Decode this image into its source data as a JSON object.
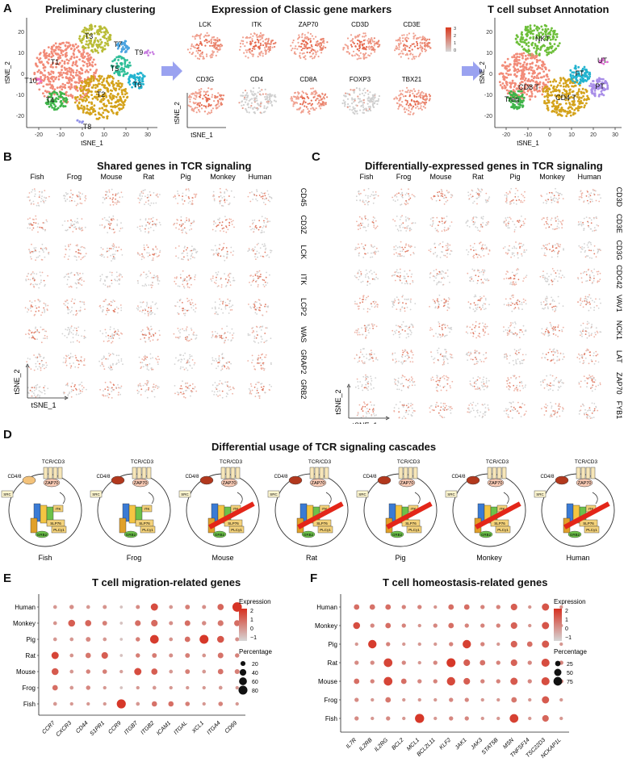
{
  "panel_letters": {
    "A": "A",
    "B": "B",
    "C": "C",
    "D": "D",
    "E": "E",
    "F": "F"
  },
  "panelA": {
    "left_title": "Preliminary clustering",
    "mid_title": "Expression of Classic gene markers",
    "right_title": "T cell subset Annotation",
    "xlabel": "tSNE_1",
    "ylabel": "tSNE_2",
    "left_xticks": [
      "-20",
      "-10",
      "0",
      "10",
      "20",
      "30"
    ],
    "left_yticks": [
      "20",
      "10",
      "0",
      "-10",
      "-20"
    ],
    "right_xticks": [
      "-20",
      "-10",
      "0",
      "10",
      "20",
      "30"
    ],
    "right_yticks": [
      "20",
      "10",
      "0",
      "-10",
      "-20"
    ],
    "clusters": [
      {
        "label": "T1",
        "color": "#f28b78"
      },
      {
        "label": "T2",
        "color": "#d4a21a"
      },
      {
        "label": "T3",
        "color": "#b9bc36"
      },
      {
        "label": "T4",
        "color": "#3fb54a"
      },
      {
        "label": "T5",
        "color": "#2fbe98"
      },
      {
        "label": "T6",
        "color": "#22b3cf"
      },
      {
        "label": "T7",
        "color": "#4aa3e0"
      },
      {
        "label": "T8",
        "color": "#8f8fe8"
      },
      {
        "label": "T9",
        "color": "#c77be0"
      },
      {
        "label": "T10",
        "color": "#ef6fc2"
      }
    ],
    "markers_row1": [
      "LCK",
      "ITK",
      "ZAP70",
      "CD3D",
      "CD3E"
    ],
    "markers_row2": [
      "CD3G",
      "CD4",
      "CD8A",
      "FOXP3",
      "TBX21"
    ],
    "colorbar_ticks": [
      "3",
      "2",
      "1",
      "0"
    ],
    "annotations": [
      {
        "label": "NKT",
        "color": "#6dbf3a"
      },
      {
        "label": "CD8 T",
        "color": "#f28b78"
      },
      {
        "label": "CD4 T",
        "color": "#d4a21a"
      },
      {
        "label": "Treg",
        "color": "#3fb54a"
      },
      {
        "label": "FT",
        "color": "#22b3cf"
      },
      {
        "label": "PT",
        "color": "#a98ee8"
      },
      {
        "label": "UT",
        "color": "#e06fd6"
      }
    ]
  },
  "panelB": {
    "title": "Shared genes in TCR signaling",
    "species": [
      "Fish",
      "Frog",
      "Mouse",
      "Rat",
      "Pig",
      "Monkey",
      "Human"
    ],
    "genes": [
      "CD45",
      "CD3Z",
      "LCK",
      "ITK",
      "LCP2",
      "WAS",
      "GRAP2",
      "GRB2"
    ],
    "xlabel": "tSNE_1",
    "ylabel": "tSNE_2"
  },
  "panelC": {
    "title": "Differentially-expressed genes in TCR signaling",
    "species": [
      "Fish",
      "Frog",
      "Mouse",
      "Rat",
      "Pig",
      "Monkey",
      "Human"
    ],
    "genes": [
      "CD3D",
      "CD3E",
      "CD3G",
      "CDC42",
      "VAV1",
      "NCK1",
      "LAT",
      "ZAP70",
      "FYB1"
    ],
    "xlabel": "tSNE_1",
    "ylabel": "tSNE_2"
  },
  "panelD": {
    "title": "Differential usage of TCR signaling cascades",
    "species": [
      "Fish",
      "Frog",
      "Mouse",
      "Rat",
      "Pig",
      "Monkey",
      "Human"
    ],
    "labels": {
      "tcr": "TCR/CD3",
      "cd48": "CD4/8",
      "zap": "ZAP70",
      "lck": "LCK",
      "itk": "ITK",
      "slp": "SLP76",
      "plc": "PLCγ1",
      "grb2": "GRB2",
      "vav": "VAV1",
      "nck": "NCK",
      "cdc": "CDC42",
      "lat": "LAT",
      "src": "SRC"
    }
  },
  "panelE": {
    "chart_data": {
      "type": "scatter",
      "title": "T cell migration-related genes",
      "genes": [
        "CCR7",
        "CXCR3",
        "CD44",
        "S1PR1",
        "CCR9",
        "ITGB7",
        "ITGB2",
        "ICAM1",
        "ITGAL",
        "XCL1",
        "ITGA4",
        "CD69"
      ],
      "species": [
        "Human",
        "Monkey",
        "Pig",
        "Rat",
        "Mouse",
        "Frog",
        "Fish"
      ],
      "expression_range": [
        -1.5,
        2.5
      ],
      "colorbar_ticks": [
        "2",
        "1",
        "0",
        "−1"
      ],
      "size_ticks": [
        "20",
        "40",
        "60",
        "80"
      ],
      "legend_title_color": "Expression",
      "legend_title_size": "Percentage",
      "points": [
        [
          2,
          10,
          0.0
        ],
        [
          3,
          15,
          0.2
        ],
        [
          4,
          10,
          0.0
        ],
        [
          5,
          12,
          0.1
        ],
        [
          0,
          5,
          -1.0
        ],
        [
          4,
          12,
          0.3
        ],
        [
          22,
          50,
          1.8
        ],
        [
          4,
          10,
          0.0
        ],
        [
          6,
          18,
          0.6
        ],
        [
          4,
          12,
          0.2
        ],
        [
          14,
          35,
          1.2
        ],
        [
          60,
          90,
          2.4
        ],
        [
          3,
          10,
          0.1
        ],
        [
          20,
          45,
          1.4
        ],
        [
          12,
          35,
          1.2
        ],
        [
          6,
          18,
          0.6
        ],
        [
          0,
          5,
          -1.0
        ],
        [
          12,
          30,
          1.0
        ],
        [
          18,
          40,
          1.1
        ],
        [
          4,
          12,
          0.2
        ],
        [
          12,
          28,
          1.0
        ],
        [
          6,
          15,
          0.3
        ],
        [
          12,
          30,
          0.8
        ],
        [
          14,
          32,
          1.0
        ],
        [
          3,
          10,
          0.0
        ],
        [
          3,
          10,
          0.0
        ],
        [
          6,
          18,
          0.4
        ],
        [
          2,
          10,
          0.0
        ],
        [
          0,
          5,
          -1.0
        ],
        [
          6,
          15,
          0.6
        ],
        [
          40,
          75,
          2.2
        ],
        [
          4,
          10,
          0.1
        ],
        [
          10,
          26,
          1.0
        ],
        [
          45,
          80,
          2.3
        ],
        [
          20,
          45,
          1.6
        ],
        [
          4,
          12,
          0.2
        ],
        [
          22,
          50,
          2.0
        ],
        [
          4,
          10,
          0.1
        ],
        [
          10,
          25,
          0.8
        ],
        [
          18,
          40,
          1.4
        ],
        [
          0,
          5,
          -1.0
        ],
        [
          6,
          15,
          0.6
        ],
        [
          6,
          18,
          0.7
        ],
        [
          4,
          12,
          0.2
        ],
        [
          6,
          18,
          0.6
        ],
        [
          4,
          10,
          0.1
        ],
        [
          12,
          28,
          0.9
        ],
        [
          6,
          15,
          0.5
        ],
        [
          20,
          45,
          1.5
        ],
        [
          4,
          10,
          0.0
        ],
        [
          6,
          15,
          0.5
        ],
        [
          6,
          16,
          0.6
        ],
        [
          2,
          8,
          -0.2
        ],
        [
          22,
          50,
          1.8
        ],
        [
          14,
          35,
          1.4
        ],
        [
          4,
          10,
          0.0
        ],
        [
          6,
          18,
          0.6
        ],
        [
          4,
          10,
          0.0
        ],
        [
          10,
          26,
          0.9
        ],
        [
          8,
          20,
          0.6
        ],
        [
          10,
          26,
          1.0
        ],
        [
          3,
          10,
          0.0
        ],
        [
          6,
          15,
          0.4
        ],
        [
          2,
          8,
          0.0
        ],
        [
          0,
          5,
          -1.0
        ],
        [
          2,
          8,
          0.0
        ],
        [
          3,
          10,
          0.0
        ],
        [
          2,
          8,
          0.0
        ],
        [
          2,
          8,
          0.0
        ],
        [
          2,
          8,
          0.0
        ],
        [
          3,
          10,
          0.0
        ],
        [
          2,
          8,
          0.0
        ],
        [
          3,
          10,
          0.0
        ],
        [
          2,
          8,
          0.0
        ],
        [
          2,
          8,
          0.0
        ],
        [
          2,
          8,
          0.0
        ],
        [
          45,
          82,
          2.3
        ],
        [
          3,
          10,
          0.0
        ],
        [
          10,
          24,
          0.9
        ],
        [
          10,
          24,
          1.0
        ],
        [
          6,
          16,
          0.6
        ],
        [
          2,
          8,
          0.0
        ],
        [
          6,
          16,
          0.5
        ],
        [
          2,
          8,
          0.0
        ]
      ]
    }
  },
  "panelF": {
    "chart_data": {
      "type": "scatter",
      "title": "T cell homeostasis-related genes",
      "genes": [
        "IL7R",
        "IL2RB",
        "IL2RG",
        "BCL2",
        "MCL1",
        "BCL2L11",
        "KLF2",
        "JAK1",
        "JAK3",
        "STAT5B",
        "MSN",
        "TNFSF14",
        "TSC22D3",
        "NCKAP1L"
      ],
      "species": [
        "Human",
        "Monkey",
        "Pig",
        "Rat",
        "Mouse",
        "Frog",
        "Fish"
      ],
      "expression_range": [
        -1.5,
        2.5
      ],
      "colorbar_ticks": [
        "2",
        "1",
        "0",
        "−1"
      ],
      "size_ticks": [
        "25",
        "50",
        "75"
      ],
      "legend_title_color": "Expression",
      "legend_title_size": "Percentage",
      "points": [
        [
          12,
          26,
          1.0
        ],
        [
          12,
          26,
          0.9
        ],
        [
          12,
          26,
          1.0
        ],
        [
          6,
          14,
          0.5
        ],
        [
          6,
          14,
          0.5
        ],
        [
          3,
          8,
          0.1
        ],
        [
          12,
          26,
          1.0
        ],
        [
          12,
          26,
          1.0
        ],
        [
          6,
          14,
          0.5
        ],
        [
          6,
          14,
          0.5
        ],
        [
          20,
          40,
          1.4
        ],
        [
          3,
          8,
          0.1
        ],
        [
          25,
          50,
          1.6
        ],
        [
          3,
          8,
          0.1
        ],
        [
          22,
          45,
          1.8
        ],
        [
          6,
          14,
          0.4
        ],
        [
          12,
          26,
          1.0
        ],
        [
          6,
          14,
          0.5
        ],
        [
          3,
          8,
          0.1
        ],
        [
          6,
          14,
          0.4
        ],
        [
          12,
          26,
          1.0
        ],
        [
          6,
          14,
          0.5
        ],
        [
          6,
          14,
          0.5
        ],
        [
          6,
          14,
          0.5
        ],
        [
          20,
          40,
          1.3
        ],
        [
          3,
          8,
          0.1
        ],
        [
          25,
          50,
          1.6
        ],
        [
          3,
          8,
          0.1
        ],
        [
          3,
          8,
          0.0
        ],
        [
          40,
          70,
          2.2
        ],
        [
          6,
          14,
          0.5
        ],
        [
          3,
          8,
          0.0
        ],
        [
          3,
          8,
          0.0
        ],
        [
          3,
          8,
          0.0
        ],
        [
          6,
          14,
          0.5
        ],
        [
          40,
          70,
          2.1
        ],
        [
          6,
          14,
          0.5
        ],
        [
          3,
          8,
          0.0
        ],
        [
          20,
          40,
          1.3
        ],
        [
          12,
          26,
          1.0
        ],
        [
          25,
          50,
          1.5
        ],
        [
          3,
          8,
          0.0
        ],
        [
          6,
          14,
          0.3
        ],
        [
          6,
          14,
          0.3
        ],
        [
          45,
          75,
          2.0
        ],
        [
          6,
          14,
          0.4
        ],
        [
          3,
          8,
          0.0
        ],
        [
          6,
          14,
          0.4
        ],
        [
          50,
          80,
          2.3
        ],
        [
          20,
          40,
          1.4
        ],
        [
          12,
          26,
          0.9
        ],
        [
          6,
          14,
          0.5
        ],
        [
          20,
          40,
          1.3
        ],
        [
          6,
          14,
          0.4
        ],
        [
          35,
          65,
          1.8
        ],
        [
          6,
          14,
          0.5
        ],
        [
          12,
          26,
          1.0
        ],
        [
          6,
          14,
          0.5
        ],
        [
          45,
          75,
          2.0
        ],
        [
          12,
          26,
          1.0
        ],
        [
          6,
          14,
          0.4
        ],
        [
          6,
          14,
          0.5
        ],
        [
          40,
          70,
          1.9
        ],
        [
          20,
          40,
          1.4
        ],
        [
          6,
          14,
          0.5
        ],
        [
          6,
          14,
          0.5
        ],
        [
          25,
          50,
          1.5
        ],
        [
          6,
          14,
          0.4
        ],
        [
          35,
          65,
          1.8
        ],
        [
          6,
          14,
          0.5
        ],
        [
          6,
          14,
          0.3
        ],
        [
          3,
          8,
          0.0
        ],
        [
          12,
          26,
          0.8
        ],
        [
          3,
          8,
          0.0
        ],
        [
          3,
          8,
          0.0
        ],
        [
          3,
          8,
          0.0
        ],
        [
          6,
          14,
          0.4
        ],
        [
          6,
          14,
          0.4
        ],
        [
          3,
          8,
          0.0
        ],
        [
          3,
          8,
          0.0
        ],
        [
          12,
          26,
          0.8
        ],
        [
          3,
          8,
          0.0
        ],
        [
          25,
          50,
          1.5
        ],
        [
          3,
          8,
          0.0
        ],
        [
          6,
          14,
          0.3
        ],
        [
          3,
          8,
          0.0
        ],
        [
          6,
          14,
          0.3
        ],
        [
          3,
          8,
          0.0
        ],
        [
          55,
          85,
          2.3
        ],
        [
          3,
          8,
          0.0
        ],
        [
          6,
          14,
          0.4
        ],
        [
          6,
          14,
          0.4
        ],
        [
          3,
          8,
          0.0
        ],
        [
          3,
          8,
          0.0
        ],
        [
          45,
          75,
          2.1
        ],
        [
          3,
          8,
          0.0
        ],
        [
          20,
          40,
          1.2
        ],
        [
          3,
          8,
          0.0
        ]
      ]
    }
  }
}
